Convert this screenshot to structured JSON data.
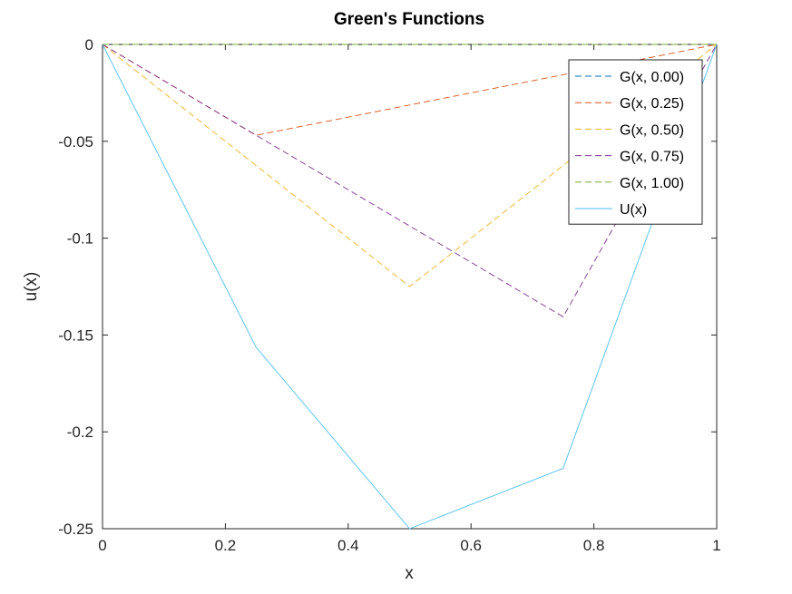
{
  "chart_data": {
    "type": "line",
    "title": "Green's Functions",
    "xlabel": "x",
    "ylabel": "u(x)",
    "xlim": [
      0,
      1
    ],
    "ylim": [
      -0.25,
      0
    ],
    "xticks": [
      0,
      0.2,
      0.4,
      0.6,
      0.8,
      1
    ],
    "xtick_labels": [
      "0",
      "0.2",
      "0.4",
      "0.6",
      "0.8",
      "1"
    ],
    "yticks": [
      0,
      -0.05,
      -0.1,
      -0.15,
      -0.2,
      -0.25
    ],
    "ytick_labels": [
      "0",
      "-0.05",
      "-0.1",
      "-0.15",
      "-0.2",
      "-0.25"
    ],
    "grid": false,
    "legend_position": "top-right",
    "series": [
      {
        "name": "G(x, 0.00)",
        "color": "#0072bd",
        "dash": "dashed",
        "x": [
          0,
          1
        ],
        "y": [
          0,
          0
        ]
      },
      {
        "name": "G(x, 0.25)",
        "color": "#d95319",
        "dash": "dashed",
        "x": [
          0,
          0.25,
          1
        ],
        "y": [
          0,
          -0.0469,
          0
        ]
      },
      {
        "name": "G(x, 0.50)",
        "color": "#edb120",
        "dash": "dashed",
        "x": [
          0,
          0.5,
          1
        ],
        "y": [
          0,
          -0.125,
          0
        ]
      },
      {
        "name": "G(x, 0.75)",
        "color": "#7e2f8e",
        "dash": "dashed",
        "x": [
          0,
          0.75,
          1
        ],
        "y": [
          0,
          -0.1406,
          0
        ]
      },
      {
        "name": "G(x, 1.00)",
        "color": "#77ac30",
        "dash": "dashed",
        "x": [
          0,
          1
        ],
        "y": [
          0,
          0
        ]
      },
      {
        "name": "U(x)",
        "color": "#4dbeee",
        "dash": "solid",
        "x": [
          0,
          0.25,
          0.5,
          0.75,
          1
        ],
        "y": [
          0,
          -0.1563,
          -0.25,
          -0.2188,
          0
        ]
      }
    ]
  }
}
